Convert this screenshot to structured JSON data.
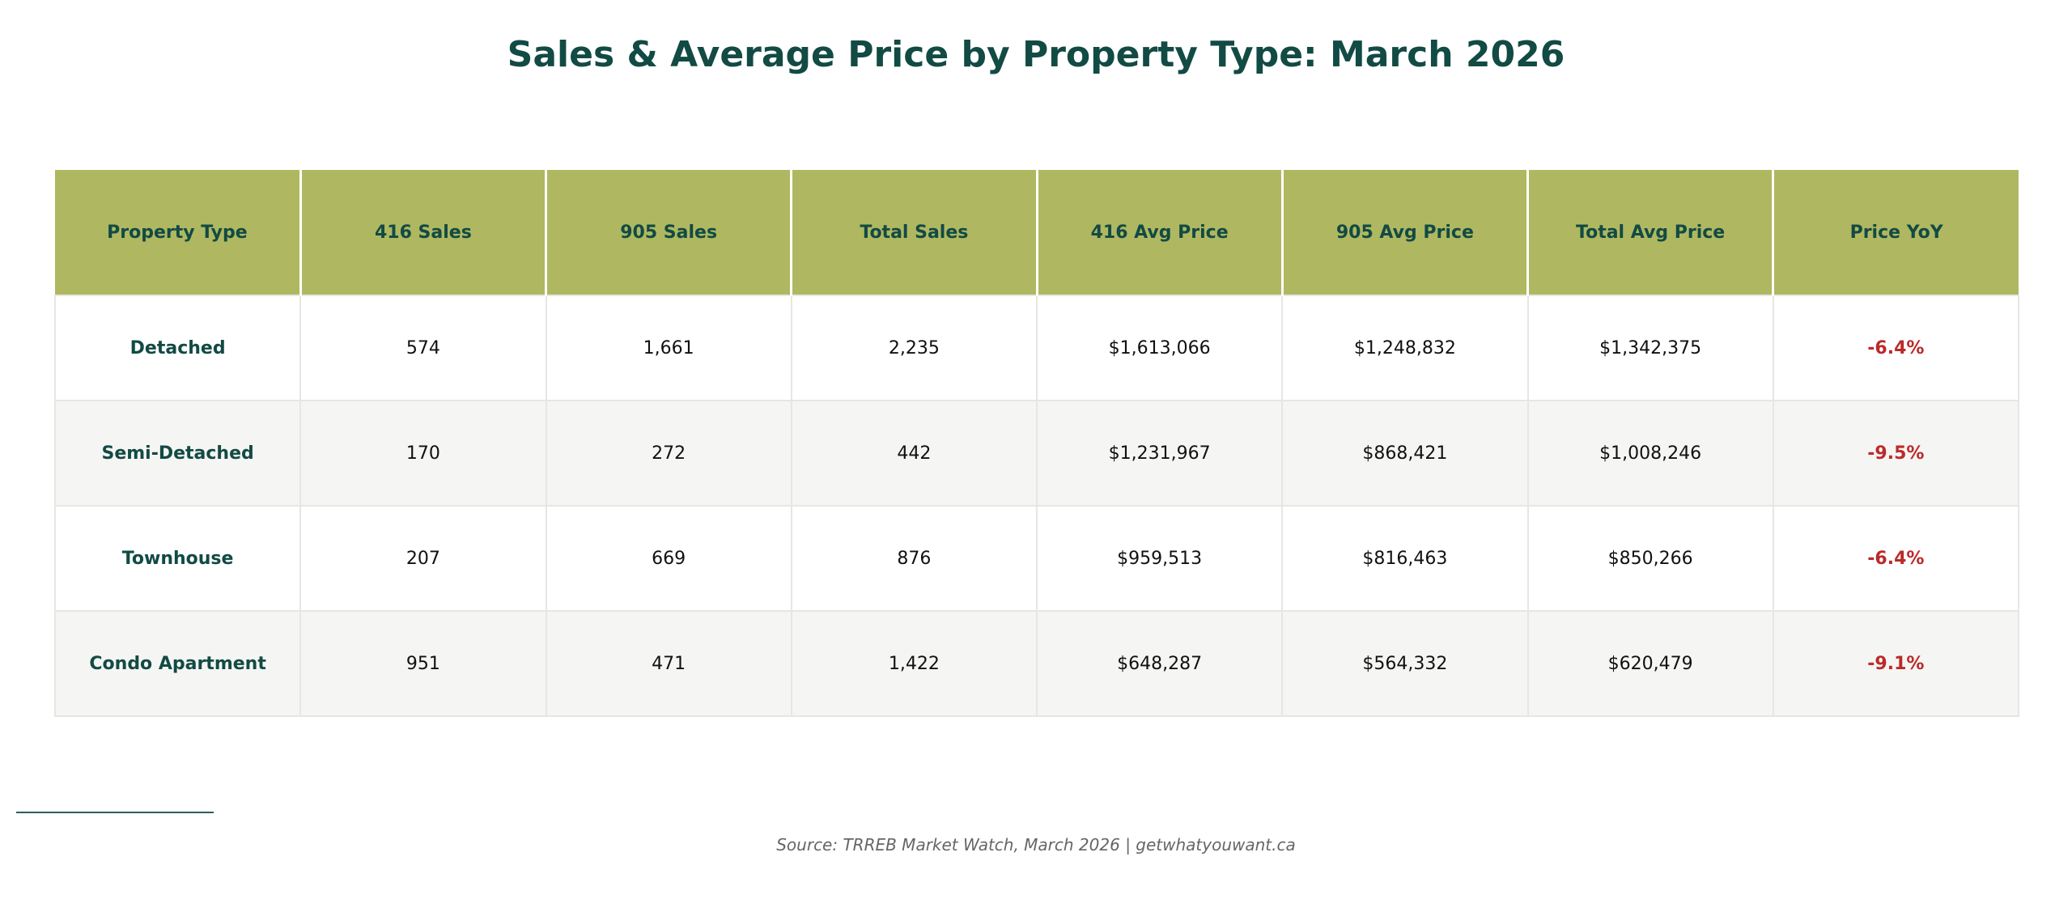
{
  "title": "Sales & Average Price by Property Type: March 2026",
  "source": "Source: TRREB Market Watch, March 2026  |  getwhatyouwant.ca",
  "colors": {
    "header_bg": "#afb860",
    "header_text": "#124a44",
    "title": "#124a44",
    "negative": "#bb2a2a",
    "row_alt": "#f5f5f3"
  },
  "chart_data": {
    "type": "table",
    "title": "Sales & Average Price by Property Type: March 2026",
    "columns": [
      "Property Type",
      "416 Sales",
      "905 Sales",
      "Total Sales",
      "416 Avg Price",
      "905 Avg Price",
      "Total Avg Price",
      "Price YoY"
    ],
    "rows": [
      [
        "Detached",
        "574",
        "1,661",
        "2,235",
        "$1,613,066",
        "$1,248,832",
        "$1,342,375",
        "-6.4%"
      ],
      [
        "Semi-Detached",
        "170",
        "272",
        "442",
        "$1,231,967",
        "$868,421",
        "$1,008,246",
        "-9.5%"
      ],
      [
        "Townhouse",
        "207",
        "669",
        "876",
        "$959,513",
        "$816,463",
        "$850,266",
        "-6.4%"
      ],
      [
        "Condo Apartment",
        "951",
        "471",
        "1,422",
        "$648,287",
        "$564,332",
        "$620,479",
        "-9.1%"
      ]
    ]
  }
}
